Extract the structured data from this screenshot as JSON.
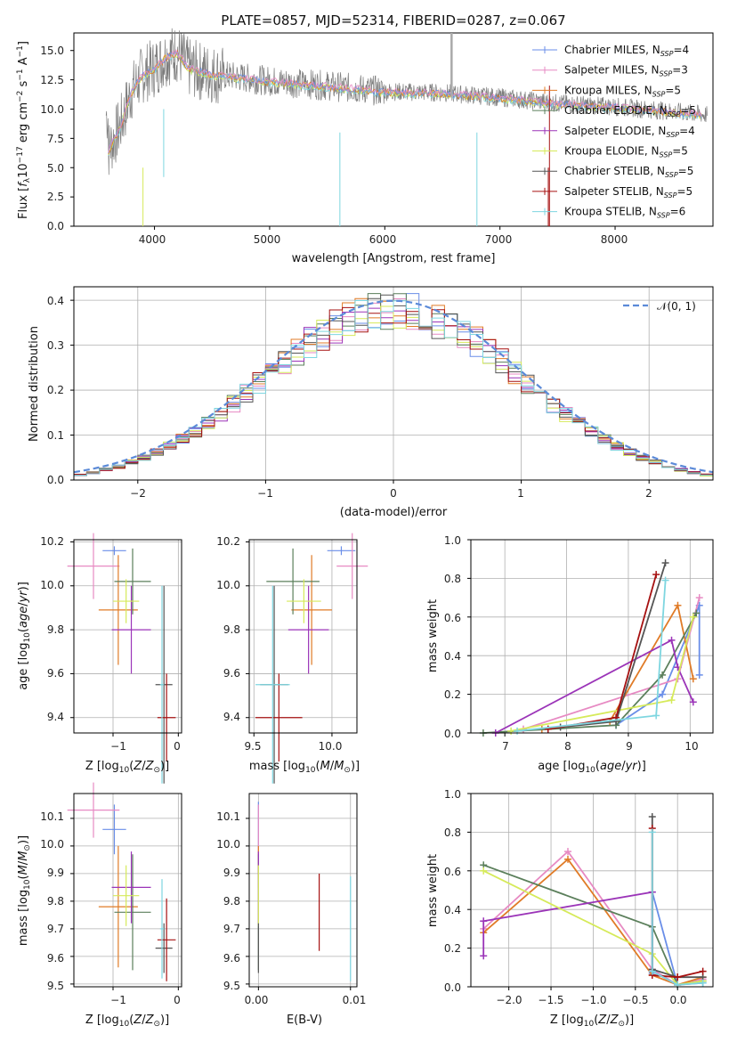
{
  "title": "PLATE=0857, MJD=52314, FIBERID=0287, z=0.067",
  "colors": [
    "#6a8ee8",
    "#e78ac3",
    "#e07b27",
    "#5b7f5b",
    "#9b34b8",
    "#d6ea5a",
    "#555555",
    "#a61111",
    "#7ed6e0"
  ],
  "chart_data": [
    {
      "id": "spectrum",
      "type": "line",
      "title": "PLATE=0857, MJD=52314, FIBERID=0287, z=0.067",
      "xlabel": "wavelength [Angstrom, rest frame]",
      "ylabel": "Flux [f_λ 10^-17 erg cm^-2 s^-1 A^-1]",
      "xlim": [
        3300,
        8850
      ],
      "ylim": [
        0,
        16.5
      ],
      "xticks": [
        "4000",
        "5000",
        "6000",
        "7000",
        "8000"
      ],
      "yticks": [
        "0.0",
        "2.5",
        "5.0",
        "7.5",
        "10.0",
        "12.5",
        "15.0"
      ],
      "grid": false,
      "legend_position": "top-right",
      "legend": [
        {
          "label": "Chabrier MILES, N",
          "sub": "SSP",
          "rest": "=4"
        },
        {
          "label": "Salpeter MILES, N",
          "sub": "SSP",
          "rest": "=3"
        },
        {
          "label": "Kroupa MILES, N",
          "sub": "SSP",
          "rest": "=5"
        },
        {
          "label": "Chabrier ELODIE, N",
          "sub": "SSP",
          "rest": "=5"
        },
        {
          "label": "Salpeter ELODIE, N",
          "sub": "SSP",
          "rest": "=4"
        },
        {
          "label": "Kroupa ELODIE, N",
          "sub": "SSP",
          "rest": "=5"
        },
        {
          "label": "Chabrier STELIB, N",
          "sub": "SSP",
          "rest": "=5"
        },
        {
          "label": "Salpeter STELIB, N",
          "sub": "SSP",
          "rest": "=5"
        },
        {
          "label": "Kroupa STELIB, N",
          "sub": "SSP",
          "rest": "=6"
        }
      ],
      "data_envelope": {
        "x": [
          3600,
          3700,
          3800,
          3900,
          4000,
          4100,
          4200,
          4300,
          4500,
          5000,
          5500,
          6000,
          6500,
          7000,
          7500,
          8000,
          8500,
          8800
        ],
        "y": [
          6.5,
          8.5,
          11.5,
          13.0,
          13.5,
          14.5,
          14.8,
          13.5,
          13.0,
          12.4,
          12.0,
          11.5,
          11.4,
          11.0,
          10.5,
          10.2,
          9.8,
          9.5
        ]
      }
    },
    {
      "id": "residuals",
      "type": "histogram",
      "xlabel": "(data-model)/error",
      "ylabel": "Normed distribution",
      "xlim": [
        -2.5,
        2.5
      ],
      "ylim": [
        0,
        0.43
      ],
      "xticks": [
        "−2",
        "−1",
        "0",
        "1",
        "2"
      ],
      "yticks": [
        "0.0",
        "0.1",
        "0.2",
        "0.3",
        "0.4"
      ],
      "grid": true,
      "legend_position": "top-right",
      "legend": [
        "𝒩(0, 1)"
      ],
      "bin_width": 0.1
    },
    {
      "id": "age-vs-z",
      "type": "errorbar",
      "xlabel": "Z [log10(Z/Z⊙)]",
      "ylabel": "age [log10(age/yr)]",
      "xlim": [
        -1.6,
        0.05
      ],
      "ylim": [
        9.33,
        10.21
      ],
      "xticks": [
        "−1",
        "0"
      ],
      "yticks": [
        "9.4",
        "9.6",
        "9.8",
        "10.0",
        "10.2"
      ],
      "points": [
        {
          "x": -0.98,
          "xerr": 0.18,
          "y": 10.16,
          "yerr": 0.02
        },
        {
          "x": -1.3,
          "xerr": 0.4,
          "y": 10.09,
          "yerr": 0.15
        },
        {
          "x": -0.92,
          "xerr": 0.3,
          "y": 9.89,
          "yerr": 0.25
        },
        {
          "x": -0.7,
          "xerr": 0.28,
          "y": 10.02,
          "yerr": 0.15
        },
        {
          "x": -0.72,
          "xerr": 0.3,
          "y": 9.8,
          "yerr": 0.2
        },
        {
          "x": -0.8,
          "xerr": 0.2,
          "y": 9.93,
          "yerr": 0.1
        },
        {
          "x": -0.22,
          "xerr": 0.13,
          "y": 9.55,
          "yerr": 0.45
        },
        {
          "x": -0.18,
          "xerr": 0.14,
          "y": 9.4,
          "yerr": 0.2
        },
        {
          "x": -0.25,
          "xerr": 0.03,
          "y": 9.55,
          "yerr": 0.45
        }
      ]
    },
    {
      "id": "age-vs-mass",
      "type": "errorbar",
      "xlabel": "mass [log10(M/M⊙)]",
      "ylabel": "",
      "xlim": [
        9.47,
        10.16
      ],
      "ylim": [
        9.33,
        10.21
      ],
      "xticks": [
        "9.5",
        "10.0"
      ],
      "yticks": [
        "9.4",
        "9.6",
        "9.8",
        "10.0",
        "10.2"
      ],
      "points": [
        {
          "x": 10.06,
          "xerr": 0.09,
          "y": 10.16,
          "yerr": 0.02
        },
        {
          "x": 10.13,
          "xerr": 0.1,
          "y": 10.09,
          "yerr": 0.15
        },
        {
          "x": 9.87,
          "xerr": 0.13,
          "y": 9.89,
          "yerr": 0.25
        },
        {
          "x": 9.75,
          "xerr": 0.17,
          "y": 10.02,
          "yerr": 0.15
        },
        {
          "x": 9.85,
          "xerr": 0.13,
          "y": 9.8,
          "yerr": 0.2
        },
        {
          "x": 9.82,
          "xerr": 0.11,
          "y": 9.93,
          "yerr": 0.1
        },
        {
          "x": 9.63,
          "xerr": 0.09,
          "y": 9.55,
          "yerr": 0.45
        },
        {
          "x": 9.66,
          "xerr": 0.15,
          "y": 9.4,
          "yerr": 0.2
        },
        {
          "x": 9.62,
          "xerr": 0.11,
          "y": 9.55,
          "yerr": 0.45
        }
      ]
    },
    {
      "id": "mass-weight-vs-age",
      "type": "line",
      "xlabel": "age [log10(age/yr)]",
      "ylabel": "mass weight",
      "xlim": [
        6.45,
        10.37
      ],
      "ylim": [
        0,
        1
      ],
      "xticks": [
        "7",
        "8",
        "9",
        "10"
      ],
      "yticks": [
        "0.0",
        "0.2",
        "0.4",
        "0.6",
        "0.8",
        "1.0"
      ],
      "grid": true,
      "series": [
        {
          "x": [
            8.8,
            9.55,
            10.15,
            10.15
          ],
          "y": [
            0.04,
            0.2,
            0.66,
            0.3
          ]
        },
        {
          "x": [
            7.3,
            9.8,
            10.15
          ],
          "y": [
            0.02,
            0.28,
            0.7
          ]
        },
        {
          "x": [
            7.6,
            8.7,
            9.8,
            10.05
          ],
          "y": [
            0.02,
            0.06,
            0.66,
            0.28
          ]
        },
        {
          "x": [
            6.65,
            8.8,
            9.55,
            10.1
          ],
          "y": [
            0.0,
            0.04,
            0.3,
            0.62
          ]
        },
        {
          "x": [
            6.85,
            9.7,
            9.8,
            10.05
          ],
          "y": [
            0.0,
            0.48,
            0.34,
            0.16
          ]
        },
        {
          "x": [
            7.1,
            9.7,
            10.05
          ],
          "y": [
            0.01,
            0.17,
            0.6
          ]
        },
        {
          "x": [
            7.9,
            8.8,
            9.6
          ],
          "y": [
            0.03,
            0.06,
            0.88
          ]
        },
        {
          "x": [
            7.7,
            8.8,
            9.45
          ],
          "y": [
            0.02,
            0.08,
            0.82
          ]
        },
        {
          "x": [
            7.2,
            9.45,
            9.6
          ],
          "y": [
            0.01,
            0.09,
            0.79
          ]
        }
      ]
    },
    {
      "id": "mass-vs-z",
      "type": "errorbar",
      "xlabel": "Z [log10(Z/Z⊙)]",
      "ylabel": "mass [log10(M/M⊙)]",
      "xlim": [
        -1.6,
        0.05
      ],
      "ylim": [
        9.49,
        10.19
      ],
      "xticks": [
        "−1",
        "0"
      ],
      "yticks": [
        "9.5",
        "9.6",
        "9.7",
        "9.8",
        "9.9",
        "10.0",
        "10.1"
      ],
      "points": [
        {
          "x": -0.98,
          "xerr": 0.18,
          "y": 10.06,
          "yerr": 0.09
        },
        {
          "x": -1.3,
          "xerr": 0.4,
          "y": 10.13,
          "yerr": 0.1
        },
        {
          "x": -0.92,
          "xerr": 0.3,
          "y": 9.78,
          "yerr": 0.22
        },
        {
          "x": -0.7,
          "xerr": 0.28,
          "y": 9.76,
          "yerr": 0.21
        },
        {
          "x": -0.72,
          "xerr": 0.3,
          "y": 9.85,
          "yerr": 0.13
        },
        {
          "x": -0.8,
          "xerr": 0.2,
          "y": 9.82,
          "yerr": 0.11
        },
        {
          "x": -0.22,
          "xerr": 0.13,
          "y": 9.63,
          "yerr": 0.09
        },
        {
          "x": -0.18,
          "xerr": 0.14,
          "y": 9.66,
          "yerr": 0.15
        },
        {
          "x": -0.25,
          "xerr": 0.03,
          "y": 9.7,
          "yerr": 0.18
        }
      ]
    },
    {
      "id": "mass-vs-ebv",
      "type": "errorbar",
      "xlabel": "E(B-V)",
      "ylabel": "",
      "xlim": [
        -0.001,
        0.0107
      ],
      "ylim": [
        9.49,
        10.19
      ],
      "xticks": [
        "0.00",
        "0.01"
      ],
      "yticks": [
        "9.5",
        "9.6",
        "9.7",
        "9.8",
        "9.9",
        "10.0",
        "10.1"
      ],
      "points": [
        {
          "x": 0.0,
          "y": 10.06,
          "yerr": 0.1
        },
        {
          "x": 0.0,
          "y": 10.0,
          "yerr": 0.15
        },
        {
          "x": 0.0,
          "y": 9.95,
          "yerr": 0.05
        },
        {
          "x": 0.0,
          "y": 9.76,
          "yerr": 0.21
        },
        {
          "x": 0.0,
          "y": 9.85,
          "yerr": 0.13
        },
        {
          "x": 0.0,
          "y": 9.82,
          "yerr": 0.11
        },
        {
          "x": 0.0,
          "y": 9.63,
          "yerr": 0.09
        },
        {
          "x": 0.0066,
          "y": 9.76,
          "yerr": 0.14
        },
        {
          "x": 0.01,
          "y": 9.7,
          "yerr": 0.19
        }
      ]
    },
    {
      "id": "mass-weight-vs-z",
      "type": "line",
      "xlabel": "Z [log10(Z/Z⊙)]",
      "ylabel": "mass weight",
      "xlim": [
        -2.45,
        0.42
      ],
      "ylim": [
        0,
        1
      ],
      "xticks": [
        "−2.0",
        "−1.5",
        "−1.0",
        "−0.5",
        "0.0"
      ],
      "yticks": [
        "0.0",
        "0.2",
        "0.4",
        "0.6",
        "0.8",
        "1.0"
      ],
      "grid": true,
      "series": [
        {
          "x": [
            -0.3,
            -0.3,
            0.0,
            0.3
          ],
          "y": [
            0.07,
            0.49,
            0.01,
            0.02
          ]
        },
        {
          "x": [
            -2.3,
            -1.3,
            -0.3,
            0.0,
            0.3
          ],
          "y": [
            0.3,
            0.7,
            0.09,
            0.01,
            0.04
          ]
        },
        {
          "x": [
            -2.3,
            -1.3,
            -0.3,
            0.0,
            0.3
          ],
          "y": [
            0.28,
            0.66,
            0.06,
            0.01,
            0.05
          ]
        },
        {
          "x": [
            -2.3,
            -0.3,
            0.0,
            0.3
          ],
          "y": [
            0.63,
            0.31,
            0.01,
            0.03
          ]
        },
        {
          "x": [
            -2.3,
            -2.3,
            -0.3,
            -0.3,
            0.0
          ],
          "y": [
            0.16,
            0.34,
            0.49,
            0.08,
            0.01
          ]
        },
        {
          "x": [
            -2.3,
            -0.3,
            0.0,
            0.3
          ],
          "y": [
            0.6,
            0.17,
            0.01,
            0.03
          ]
        },
        {
          "x": [
            -0.3,
            -0.3,
            0.0,
            0.3
          ],
          "y": [
            0.88,
            0.09,
            0.05,
            0.05
          ]
        },
        {
          "x": [
            -0.3,
            -0.3,
            0.0,
            0.3
          ],
          "y": [
            0.82,
            0.06,
            0.05,
            0.08
          ]
        },
        {
          "x": [
            -0.3,
            -0.3,
            0.0,
            0.3
          ],
          "y": [
            0.8,
            0.08,
            0.01,
            0.02
          ]
        }
      ]
    }
  ]
}
